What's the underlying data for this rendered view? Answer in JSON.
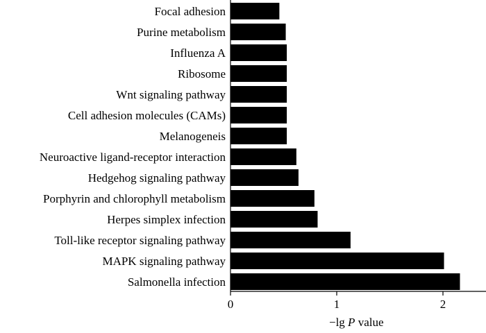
{
  "chart_data": {
    "type": "bar",
    "orientation": "horizontal",
    "categories": [
      "Focal adhesion",
      "Purine metabolism",
      "Influenza A",
      "Ribosome",
      "Wnt signaling pathway",
      "Cell adhesion molecules (CAMs)",
      "Melanogeneis",
      "Neuroactive ligand-receptor interaction",
      "Hedgehog signaling pathway",
      "Porphyrin and chlorophyll metabolism",
      "Herpes simplex infection",
      "Toll-like receptor signaling pathway",
      "MAPK signaling pathway",
      "Salmonella infection"
    ],
    "values": [
      0.46,
      0.52,
      0.53,
      0.53,
      0.53,
      0.53,
      0.53,
      0.62,
      0.64,
      0.79,
      0.82,
      1.13,
      2.01,
      2.16
    ],
    "xlabel": {
      "prefix": "−lg ",
      "italic": "P",
      "suffix": " value"
    },
    "xlim": [
      0,
      2.5
    ],
    "xticks": [
      0,
      1,
      2
    ],
    "grid": false
  }
}
